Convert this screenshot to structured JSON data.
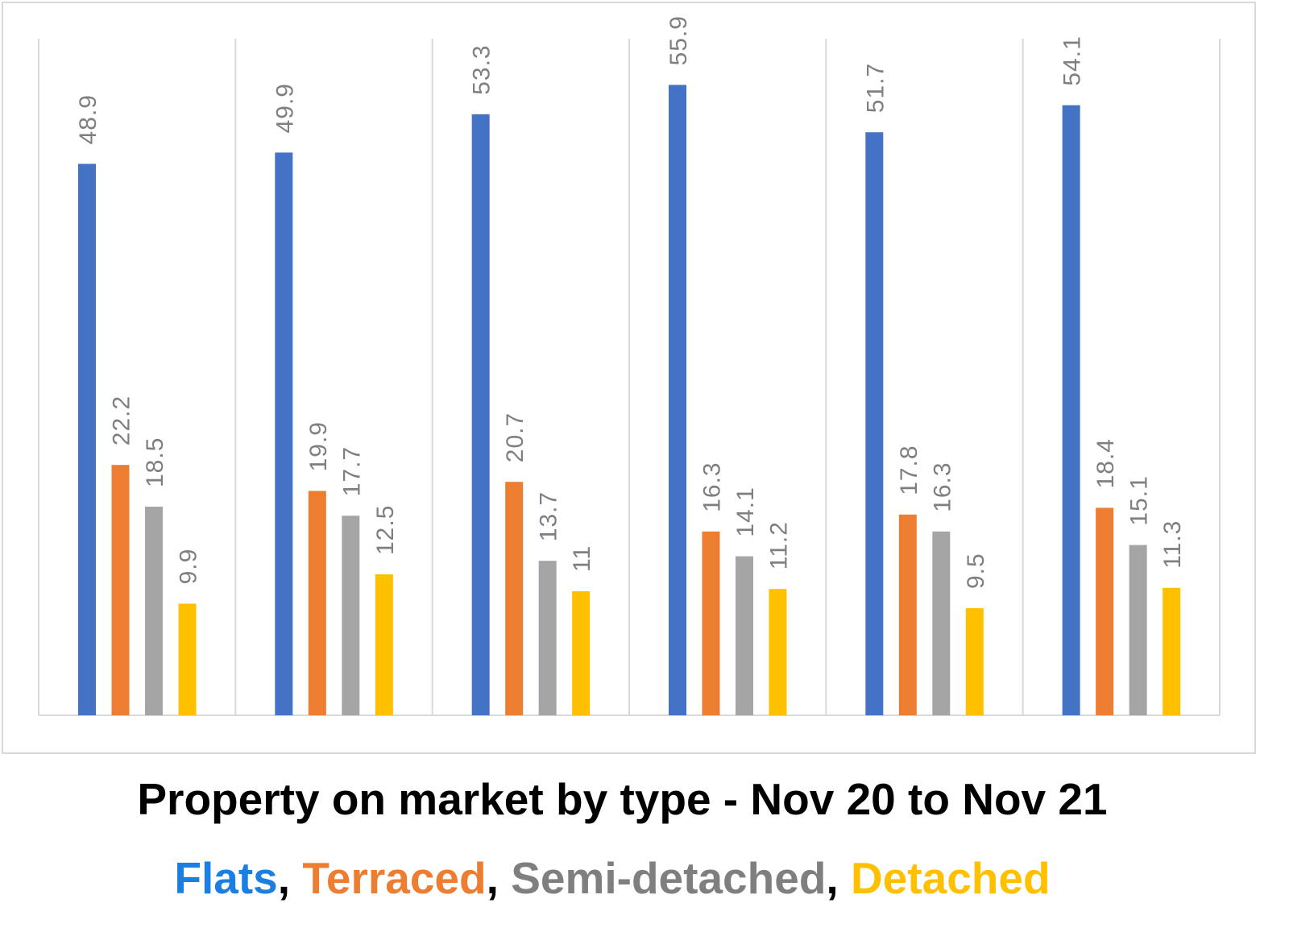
{
  "colors": {
    "flats": "#4472c4",
    "terraced": "#ed7d31",
    "semi_detached": "#a5a5a5",
    "detached": "#ffc000",
    "legend_flats": "#1a7fe0",
    "legend_terraced": "#ed7d31",
    "legend_semi_detached": "#7f7f7f",
    "legend_detached": "#ffc000",
    "gridline": "#d9d9d9",
    "label": "#7f7f7f"
  },
  "legend": {
    "flats": "Flats",
    "terraced": "Terraced",
    "semi_detached": "Semi-detached",
    "detached": "Detached",
    "separator": ","
  },
  "chart_data": {
    "type": "bar",
    "title": "Property on market by type - Nov 20 to Nov 21",
    "xlabel": "",
    "ylabel": "",
    "ylim": [
      0,
      60
    ],
    "grid": "vertical separators between groups",
    "legend_position": "bottom",
    "categories": [
      "",
      "",
      "",
      "",
      "",
      ""
    ],
    "series": [
      {
        "name": "Flats",
        "color_key": "flats",
        "values": [
          48.9,
          49.9,
          53.3,
          55.9,
          51.7,
          54.1
        ]
      },
      {
        "name": "Terraced",
        "color_key": "terraced",
        "values": [
          22.2,
          19.9,
          20.7,
          16.3,
          17.8,
          18.4
        ]
      },
      {
        "name": "Semi-detached",
        "color_key": "semi_detached",
        "values": [
          18.5,
          17.7,
          13.7,
          14.1,
          16.3,
          15.1
        ]
      },
      {
        "name": "Detached",
        "color_key": "detached",
        "values": [
          9.9,
          12.5,
          11,
          11.2,
          9.5,
          11.3
        ]
      }
    ]
  }
}
